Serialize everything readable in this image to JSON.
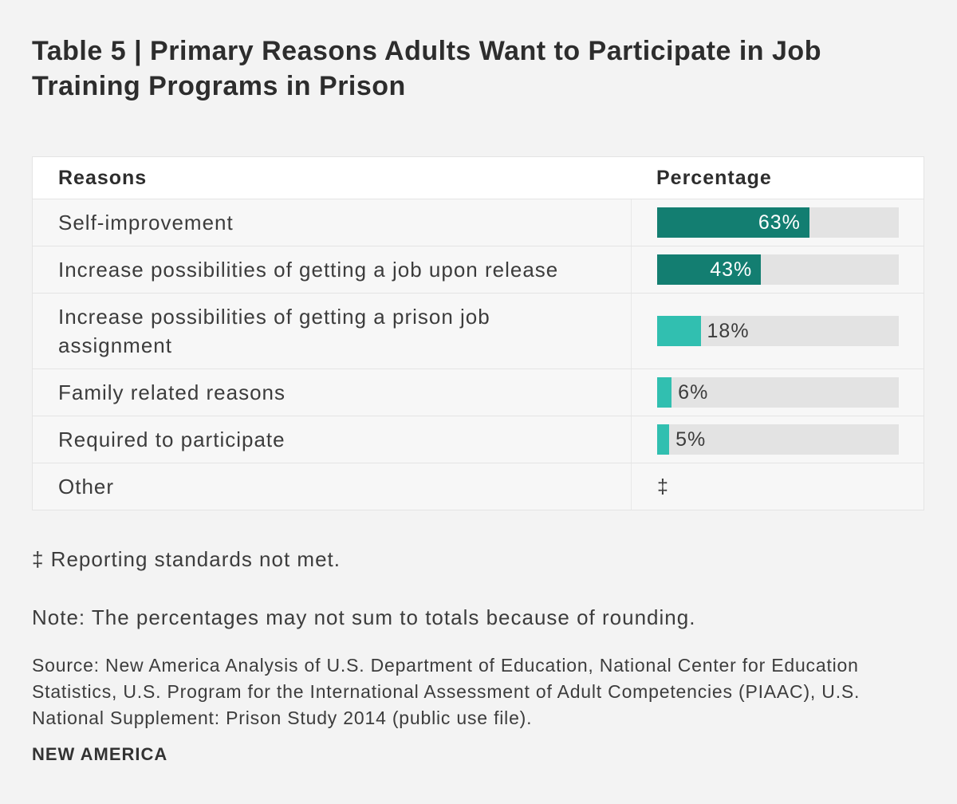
{
  "page": {
    "title": "Table 5 | Primary Reasons Adults Want to Participate in Job Training Programs in Prison"
  },
  "colors": {
    "bar_dark": "#137e71",
    "bar_light": "#31bfb0",
    "track": "#e3e3e3",
    "page_bg": "#f3f3f3",
    "row_bg": "#f7f7f7",
    "header_bg": "#ffffff"
  },
  "table": {
    "columns": {
      "reasons": "Reasons",
      "percentage": "Percentage"
    },
    "rows": [
      {
        "reason": "Self-improvement",
        "value": 63,
        "display": "63%",
        "tone": "dark",
        "label_inside": true
      },
      {
        "reason": "Increase possibilities of getting a job upon release",
        "value": 43,
        "display": "43%",
        "tone": "dark",
        "label_inside": true
      },
      {
        "reason": "Increase possibilities of getting a prison job assignment",
        "value": 18,
        "display": "18%",
        "tone": "light",
        "label_inside": false
      },
      {
        "reason": "Family related reasons",
        "value": 6,
        "display": "6%",
        "tone": "light",
        "label_inside": false
      },
      {
        "reason": "Required to participate",
        "value": 5,
        "display": "5%",
        "tone": "light",
        "label_inside": false
      },
      {
        "reason": "Other",
        "value": null,
        "display": "‡",
        "tone": "none",
        "label_inside": false
      }
    ]
  },
  "footnotes": {
    "dagger": "‡ Reporting standards not met.",
    "note": "Note: The percentages may not sum to totals because of rounding.",
    "source": "Source: New America Analysis of U.S. Department of Education, National Center for Education Statistics, U.S. Program for the International Assessment of Adult Competencies (PIAAC), U.S. National Supplement: Prison Study 2014 (public use file)."
  },
  "logo": "NEW AMERICA",
  "chart_data": {
    "type": "bar",
    "orientation": "horizontal",
    "title": "Table 5 | Primary Reasons Adults Want to Participate in Job Training Programs in Prison",
    "categories": [
      "Self-improvement",
      "Increase possibilities of getting a job upon release",
      "Increase possibilities of getting a prison job assignment",
      "Family related reasons",
      "Required to participate",
      "Other"
    ],
    "values": [
      63,
      43,
      18,
      6,
      5,
      null
    ],
    "value_labels": [
      "63%",
      "43%",
      "18%",
      "6%",
      "5%",
      "‡"
    ],
    "xlabel": "Percentage",
    "ylabel": "Reasons",
    "xlim": [
      0,
      100
    ],
    "grid": false,
    "legend": false,
    "bar_colors": [
      "#137e71",
      "#137e71",
      "#31bfb0",
      "#31bfb0",
      "#31bfb0",
      null
    ],
    "annotations": [
      "‡ Reporting standards not met.",
      "Note: The percentages may not sum to totals because of rounding."
    ]
  }
}
